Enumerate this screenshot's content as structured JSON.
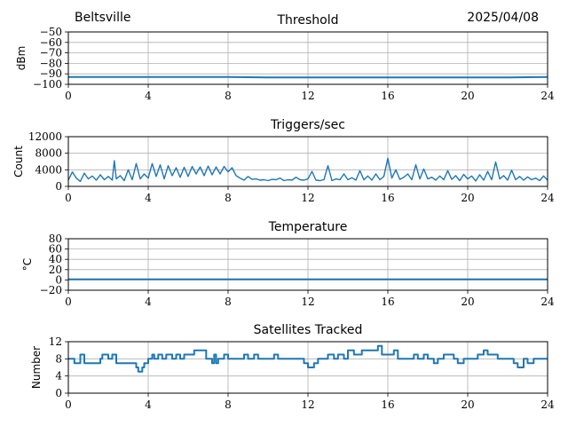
{
  "header": {
    "location": "Beltsville",
    "date": "2025/04/08"
  },
  "colors": {
    "series": "#1f77b4",
    "grid": "#b0b0b0",
    "axis": "#000000"
  },
  "chart_data": [
    {
      "type": "line",
      "title": "Threshold",
      "xlabel": "",
      "ylabel": "dBm",
      "xlim": [
        0,
        24
      ],
      "ylim": [
        -100,
        -50
      ],
      "xticks": [
        0,
        4,
        8,
        12,
        16,
        20,
        24
      ],
      "yticks": [
        -100,
        -90,
        -80,
        -70,
        -60,
        -50
      ],
      "grid": true,
      "series": [
        {
          "x": [
            0,
            2,
            4,
            6,
            8,
            10,
            12,
            14,
            16,
            18,
            20,
            22,
            24
          ],
          "y": [
            -93,
            -93,
            -93,
            -93,
            -93,
            -93.5,
            -93.5,
            -93.5,
            -93.5,
            -93.5,
            -93.5,
            -93.5,
            -93
          ]
        }
      ]
    },
    {
      "type": "line",
      "title": "Triggers/sec",
      "xlabel": "",
      "ylabel": "Count",
      "xlim": [
        0,
        24
      ],
      "ylim": [
        0,
        12000
      ],
      "xticks": [
        0,
        4,
        8,
        12,
        16,
        20,
        24
      ],
      "yticks": [
        0,
        4000,
        8000,
        12000
      ],
      "grid": true,
      "series": [
        {
          "x": [
            0,
            0.2,
            0.4,
            0.6,
            0.8,
            1,
            1.2,
            1.4,
            1.6,
            1.8,
            2,
            2.2,
            2.3,
            2.4,
            2.6,
            2.8,
            3,
            3.2,
            3.4,
            3.6,
            3.8,
            4,
            4.2,
            4.4,
            4.6,
            4.8,
            5,
            5.2,
            5.4,
            5.6,
            5.8,
            6,
            6.2,
            6.4,
            6.6,
            6.8,
            7,
            7.2,
            7.4,
            7.6,
            7.8,
            8,
            8.2,
            8.4,
            8.6,
            8.8,
            9,
            9.2,
            9.4,
            9.6,
            9.8,
            10,
            10.2,
            10.4,
            10.6,
            10.8,
            11,
            11.2,
            11.4,
            11.6,
            11.8,
            12,
            12.2,
            12.4,
            12.6,
            12.8,
            13,
            13.2,
            13.4,
            13.6,
            13.8,
            14,
            14.2,
            14.4,
            14.6,
            14.8,
            15,
            15.2,
            15.4,
            15.6,
            15.8,
            16,
            16.2,
            16.4,
            16.6,
            16.8,
            17,
            17.2,
            17.4,
            17.6,
            17.8,
            18,
            18.2,
            18.4,
            18.6,
            18.8,
            19,
            19.2,
            19.4,
            19.6,
            19.8,
            20,
            20.2,
            20.4,
            20.6,
            20.8,
            21,
            21.2,
            21.4,
            21.6,
            21.8,
            22,
            22.2,
            22.4,
            22.6,
            22.8,
            23,
            23.2,
            23.4,
            23.6,
            23.8,
            24
          ],
          "y": [
            1500,
            3500,
            2000,
            1200,
            3200,
            1800,
            2500,
            1500,
            2800,
            1600,
            2400,
            1500,
            6200,
            1800,
            2600,
            1400,
            4000,
            1600,
            5500,
            1800,
            3000,
            2000,
            5500,
            2400,
            5200,
            1800,
            5000,
            2600,
            4500,
            2200,
            4600,
            2400,
            4800,
            3000,
            4700,
            2600,
            4900,
            2800,
            4700,
            3000,
            4800,
            3500,
            4500,
            2600,
            2000,
            1500,
            2400,
            1700,
            1800,
            1500,
            1600,
            1400,
            1700,
            1600,
            2000,
            1400,
            1600,
            1500,
            2200,
            1600,
            1500,
            1800,
            3600,
            1500,
            1400,
            1600,
            5000,
            1400,
            1800,
            1600,
            3000,
            1600,
            2100,
            1500,
            3800,
            1600,
            2500,
            1500,
            3000,
            1600,
            2400,
            6800,
            2000,
            4000,
            1700,
            2200,
            3000,
            1600,
            5200,
            1800,
            4200,
            1800,
            2200,
            1500,
            2500,
            1600,
            3800,
            1700,
            2600,
            1400,
            2900,
            1800,
            2500,
            1300,
            2800,
            1500,
            3600,
            1600,
            5900,
            1800,
            2600,
            1500,
            3900,
            1600,
            2400,
            1500,
            2300,
            1600,
            2000,
            1400,
            2500,
            1500
          ]
        }
      ]
    },
    {
      "type": "line",
      "title": "Temperature",
      "xlabel": "",
      "ylabel": "°C",
      "xlim": [
        0,
        24
      ],
      "ylim": [
        -20,
        80
      ],
      "xticks": [
        0,
        4,
        8,
        12,
        16,
        20,
        24
      ],
      "yticks": [
        -20,
        0,
        20,
        40,
        60,
        80
      ],
      "grid": true,
      "series": [
        {
          "x": [
            0,
            24
          ],
          "y": [
            1,
            1
          ]
        }
      ]
    },
    {
      "type": "line",
      "title": "Satellites Tracked",
      "xlabel": "",
      "ylabel": "Number",
      "xlim": [
        0,
        24
      ],
      "ylim": [
        0,
        12
      ],
      "xticks": [
        0,
        4,
        8,
        12,
        16,
        20,
        24
      ],
      "yticks": [
        0,
        4,
        8,
        12
      ],
      "grid": true,
      "series": [
        {
          "x": [
            0,
            0.3,
            0.5,
            0.6,
            0.8,
            1.5,
            1.6,
            1.7,
            1.8,
            2.0,
            2.2,
            2.4,
            2.6,
            2.8,
            3.0,
            3.2,
            3.4,
            3.5,
            3.7,
            3.8,
            4.0,
            4.2,
            4.3,
            4.5,
            4.7,
            4.9,
            5.2,
            5.4,
            5.6,
            5.8,
            6.0,
            6.3,
            6.5,
            6.9,
            7.2,
            7.3,
            7.4,
            7.5,
            7.6,
            7.8,
            8.0,
            8.3,
            8.6,
            8.8,
            9.0,
            9.3,
            9.5,
            9.8,
            10.0,
            10.3,
            10.5,
            10.8,
            11.0,
            11.3,
            11.5,
            11.8,
            12.0,
            12.3,
            12.5,
            12.8,
            13.0,
            13.3,
            13.5,
            13.8,
            14.0,
            14.3,
            14.5,
            14.7,
            15.0,
            15.3,
            15.5,
            15.7,
            16.0,
            16.3,
            16.5,
            16.8,
            17.0,
            17.3,
            17.5,
            17.8,
            18.0,
            18.3,
            18.5,
            18.8,
            19.0,
            19.3,
            19.5,
            19.8,
            20.0,
            20.3,
            20.5,
            20.8,
            21.0,
            21.3,
            21.5,
            21.8,
            22.0,
            22.3,
            22.5,
            22.8,
            23.0,
            23.3,
            23.5,
            23.8,
            24
          ],
          "y": [
            8,
            7,
            7,
            9,
            7,
            7,
            8,
            9,
            9,
            8,
            9,
            7,
            7,
            7,
            7,
            7,
            6,
            5,
            6,
            7,
            8,
            9,
            8,
            9,
            8,
            9,
            8,
            9,
            8,
            9,
            9,
            10,
            10,
            8,
            7,
            9,
            7,
            8,
            8,
            9,
            8,
            8,
            8,
            9,
            8,
            9,
            8,
            8,
            8,
            9,
            8,
            8,
            8,
            8,
            8,
            7,
            6,
            7,
            8,
            8,
            9,
            8,
            9,
            8,
            10,
            9,
            9,
            10,
            10,
            10,
            11,
            9,
            9,
            10,
            8,
            8,
            8,
            9,
            8,
            9,
            8,
            7,
            8,
            9,
            9,
            8,
            7,
            8,
            8,
            8,
            9,
            10,
            9,
            9,
            8,
            8,
            8,
            7,
            6,
            8,
            7,
            8,
            8,
            8,
            8
          ]
        }
      ]
    }
  ]
}
